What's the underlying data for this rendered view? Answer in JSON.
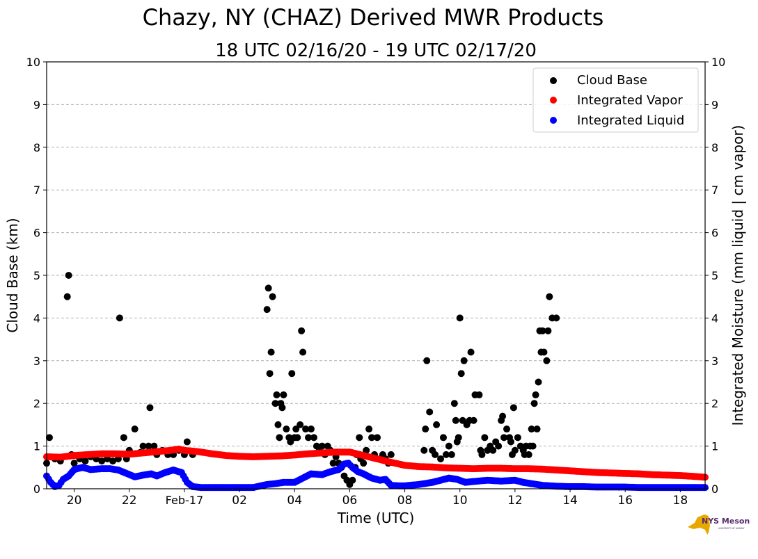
{
  "chart_data": {
    "type": "scatter",
    "title": "Chazy, NY (CHAZ) Derived MWR Products",
    "subtitle": "18 UTC 02/16/20 - 19 UTC 02/17/20",
    "xlabel": "Time (UTC)",
    "ylabel": "Cloud Base (km)",
    "ylabel_right": "Integrated Moisture (mm liquid | cm vapor)",
    "xlim": [
      19.0,
      42.9
    ],
    "ylim": [
      0,
      10
    ],
    "grid": "horizontal dashed",
    "legend_position": "top-right",
    "x_unit_note": "hours since 00 UTC 02/16/20",
    "x_ticks": [
      {
        "value": 20,
        "label": "20"
      },
      {
        "value": 22,
        "label": "22"
      },
      {
        "value": 24,
        "label": "Feb-17"
      },
      {
        "value": 26,
        "label": "02"
      },
      {
        "value": 28,
        "label": "04"
      },
      {
        "value": 30,
        "label": "06"
      },
      {
        "value": 32,
        "label": "08"
      },
      {
        "value": 34,
        "label": "10"
      },
      {
        "value": 36,
        "label": "12"
      },
      {
        "value": 38,
        "label": "14"
      },
      {
        "value": 40,
        "label": "16"
      },
      {
        "value": 42,
        "label": "18"
      }
    ],
    "y_ticks": [
      "0",
      "1",
      "2",
      "3",
      "4",
      "5",
      "6",
      "7",
      "8",
      "9",
      "10"
    ],
    "series": [
      {
        "name": "Cloud Base",
        "color": "#000000",
        "points": [
          [
            19.0,
            0.6
          ],
          [
            19.1,
            1.2
          ],
          [
            19.3,
            0.7
          ],
          [
            19.5,
            0.65
          ],
          [
            19.75,
            4.5
          ],
          [
            19.8,
            5.0
          ],
          [
            19.9,
            0.8
          ],
          [
            20.0,
            0.6
          ],
          [
            20.2,
            0.7
          ],
          [
            20.4,
            0.65
          ],
          [
            20.6,
            0.75
          ],
          [
            20.8,
            0.7
          ],
          [
            21.0,
            0.65
          ],
          [
            21.2,
            0.7
          ],
          [
            21.4,
            0.65
          ],
          [
            21.6,
            0.7
          ],
          [
            21.65,
            4.0
          ],
          [
            21.8,
            1.2
          ],
          [
            21.9,
            0.7
          ],
          [
            22.0,
            0.9
          ],
          [
            22.2,
            1.4
          ],
          [
            22.4,
            0.85
          ],
          [
            22.5,
            1.0
          ],
          [
            22.7,
            1.0
          ],
          [
            22.75,
            1.9
          ],
          [
            22.9,
            1.0
          ],
          [
            23.0,
            0.8
          ],
          [
            23.2,
            0.9
          ],
          [
            23.4,
            0.8
          ],
          [
            23.6,
            0.8
          ],
          [
            23.8,
            0.9
          ],
          [
            24.0,
            0.8
          ],
          [
            24.1,
            1.1
          ],
          [
            24.3,
            0.8
          ],
          [
            27.0,
            4.2
          ],
          [
            27.05,
            4.7
          ],
          [
            27.1,
            2.7
          ],
          [
            27.15,
            3.2
          ],
          [
            27.2,
            4.5
          ],
          [
            27.3,
            2.0
          ],
          [
            27.35,
            2.2
          ],
          [
            27.4,
            1.5
          ],
          [
            27.45,
            1.2
          ],
          [
            27.5,
            2.0
          ],
          [
            27.55,
            1.9
          ],
          [
            27.6,
            2.2
          ],
          [
            27.7,
            1.4
          ],
          [
            27.8,
            1.2
          ],
          [
            27.85,
            1.1
          ],
          [
            27.9,
            2.7
          ],
          [
            28.0,
            1.2
          ],
          [
            28.05,
            1.4
          ],
          [
            28.1,
            1.2
          ],
          [
            28.2,
            1.5
          ],
          [
            28.25,
            3.7
          ],
          [
            28.3,
            3.2
          ],
          [
            28.4,
            1.4
          ],
          [
            28.5,
            1.2
          ],
          [
            28.6,
            1.4
          ],
          [
            28.7,
            1.2
          ],
          [
            28.8,
            1.0
          ],
          [
            28.9,
            0.9
          ],
          [
            29.0,
            1.0
          ],
          [
            29.1,
            0.8
          ],
          [
            29.2,
            1.0
          ],
          [
            29.3,
            0.9
          ],
          [
            29.4,
            0.6
          ],
          [
            29.5,
            0.75
          ],
          [
            29.6,
            0.6
          ],
          [
            29.7,
            0.5
          ],
          [
            29.8,
            0.3
          ],
          [
            29.9,
            0.2
          ],
          [
            30.0,
            0.1
          ],
          [
            30.1,
            0.2
          ],
          [
            30.2,
            0.5
          ],
          [
            30.25,
            0.8
          ],
          [
            30.35,
            1.2
          ],
          [
            30.4,
            0.7
          ],
          [
            30.5,
            0.6
          ],
          [
            30.6,
            0.9
          ],
          [
            30.7,
            1.4
          ],
          [
            30.8,
            1.2
          ],
          [
            30.9,
            0.8
          ],
          [
            31.0,
            1.2
          ],
          [
            31.1,
            0.7
          ],
          [
            31.2,
            0.8
          ],
          [
            31.3,
            0.7
          ],
          [
            31.4,
            0.6
          ],
          [
            31.5,
            0.8
          ],
          [
            32.7,
            0.9
          ],
          [
            32.75,
            1.4
          ],
          [
            32.8,
            3.0
          ],
          [
            32.9,
            1.8
          ],
          [
            33.0,
            0.9
          ],
          [
            33.1,
            0.8
          ],
          [
            33.15,
            1.5
          ],
          [
            33.3,
            0.7
          ],
          [
            33.4,
            1.2
          ],
          [
            33.5,
            0.8
          ],
          [
            33.6,
            1.0
          ],
          [
            33.7,
            0.8
          ],
          [
            33.8,
            2.0
          ],
          [
            33.85,
            1.6
          ],
          [
            33.9,
            1.1
          ],
          [
            33.95,
            1.2
          ],
          [
            34.0,
            4.0
          ],
          [
            34.05,
            2.7
          ],
          [
            34.1,
            1.6
          ],
          [
            34.15,
            3.0
          ],
          [
            34.25,
            1.5
          ],
          [
            34.35,
            1.6
          ],
          [
            34.4,
            3.2
          ],
          [
            34.5,
            1.6
          ],
          [
            34.55,
            2.2
          ],
          [
            34.7,
            2.2
          ],
          [
            34.75,
            0.9
          ],
          [
            34.8,
            0.8
          ],
          [
            34.9,
            1.2
          ],
          [
            35.0,
            0.9
          ],
          [
            35.1,
            1.0
          ],
          [
            35.2,
            0.9
          ],
          [
            35.3,
            1.1
          ],
          [
            35.4,
            1.0
          ],
          [
            35.5,
            1.6
          ],
          [
            35.55,
            1.7
          ],
          [
            35.6,
            1.2
          ],
          [
            35.7,
            1.4
          ],
          [
            35.8,
            1.2
          ],
          [
            35.85,
            1.1
          ],
          [
            35.9,
            0.8
          ],
          [
            35.95,
            1.9
          ],
          [
            36.0,
            0.9
          ],
          [
            36.1,
            1.2
          ],
          [
            36.2,
            1.0
          ],
          [
            36.3,
            0.9
          ],
          [
            36.35,
            0.8
          ],
          [
            36.4,
            1.0
          ],
          [
            36.5,
            0.8
          ],
          [
            36.55,
            1.0
          ],
          [
            36.6,
            1.4
          ],
          [
            36.65,
            1.0
          ],
          [
            36.7,
            2.0
          ],
          [
            36.75,
            2.2
          ],
          [
            36.8,
            1.4
          ],
          [
            36.85,
            2.5
          ],
          [
            36.9,
            3.7
          ],
          [
            36.95,
            3.2
          ],
          [
            37.0,
            3.7
          ],
          [
            37.05,
            3.2
          ],
          [
            37.15,
            3.0
          ],
          [
            37.2,
            3.7
          ],
          [
            37.25,
            4.5
          ],
          [
            37.35,
            4.0
          ],
          [
            37.5,
            4.0
          ]
        ]
      },
      {
        "name": "Integrated Vapor",
        "color": "#ff0000",
        "points": [
          [
            19.0,
            0.75
          ],
          [
            19.5,
            0.74
          ],
          [
            20.0,
            0.78
          ],
          [
            20.5,
            0.8
          ],
          [
            21.0,
            0.82
          ],
          [
            21.5,
            0.82
          ],
          [
            22.0,
            0.81
          ],
          [
            22.5,
            0.84
          ],
          [
            23.0,
            0.87
          ],
          [
            23.5,
            0.9
          ],
          [
            23.8,
            0.93
          ],
          [
            24.0,
            0.9
          ],
          [
            24.5,
            0.87
          ],
          [
            25.0,
            0.82
          ],
          [
            25.5,
            0.78
          ],
          [
            26.0,
            0.76
          ],
          [
            26.5,
            0.75
          ],
          [
            27.0,
            0.76
          ],
          [
            27.5,
            0.77
          ],
          [
            28.0,
            0.79
          ],
          [
            28.5,
            0.82
          ],
          [
            29.0,
            0.84
          ],
          [
            29.5,
            0.86
          ],
          [
            30.0,
            0.86
          ],
          [
            30.5,
            0.78
          ],
          [
            31.0,
            0.7
          ],
          [
            31.5,
            0.62
          ],
          [
            32.0,
            0.55
          ],
          [
            32.5,
            0.52
          ],
          [
            33.0,
            0.51
          ],
          [
            33.5,
            0.49
          ],
          [
            34.0,
            0.48
          ],
          [
            34.5,
            0.47
          ],
          [
            35.0,
            0.48
          ],
          [
            35.5,
            0.48
          ],
          [
            36.0,
            0.47
          ],
          [
            36.5,
            0.47
          ],
          [
            37.0,
            0.46
          ],
          [
            37.5,
            0.44
          ],
          [
            38.0,
            0.42
          ],
          [
            38.5,
            0.4
          ],
          [
            39.0,
            0.38
          ],
          [
            39.5,
            0.37
          ],
          [
            40.0,
            0.36
          ],
          [
            40.5,
            0.35
          ],
          [
            41.0,
            0.33
          ],
          [
            41.5,
            0.32
          ],
          [
            42.0,
            0.31
          ],
          [
            42.5,
            0.29
          ],
          [
            42.9,
            0.27
          ]
        ]
      },
      {
        "name": "Integrated Liquid",
        "color": "#0000ff",
        "points": [
          [
            19.0,
            0.3
          ],
          [
            19.15,
            0.15
          ],
          [
            19.3,
            0.05
          ],
          [
            19.45,
            0.08
          ],
          [
            19.6,
            0.22
          ],
          [
            19.8,
            0.3
          ],
          [
            20.0,
            0.45
          ],
          [
            20.3,
            0.5
          ],
          [
            20.6,
            0.45
          ],
          [
            21.0,
            0.47
          ],
          [
            21.3,
            0.47
          ],
          [
            21.6,
            0.44
          ],
          [
            21.9,
            0.36
          ],
          [
            22.2,
            0.28
          ],
          [
            22.5,
            0.32
          ],
          [
            22.8,
            0.35
          ],
          [
            23.0,
            0.3
          ],
          [
            23.3,
            0.38
          ],
          [
            23.6,
            0.44
          ],
          [
            23.9,
            0.38
          ],
          [
            24.1,
            0.15
          ],
          [
            24.3,
            0.05
          ],
          [
            24.6,
            0.03
          ],
          [
            25.0,
            0.03
          ],
          [
            25.5,
            0.03
          ],
          [
            26.0,
            0.03
          ],
          [
            26.5,
            0.03
          ],
          [
            27.0,
            0.1
          ],
          [
            27.3,
            0.12
          ],
          [
            27.6,
            0.15
          ],
          [
            28.0,
            0.15
          ],
          [
            28.3,
            0.25
          ],
          [
            28.6,
            0.35
          ],
          [
            29.0,
            0.33
          ],
          [
            29.3,
            0.4
          ],
          [
            29.6,
            0.45
          ],
          [
            29.8,
            0.58
          ],
          [
            29.95,
            0.6
          ],
          [
            30.1,
            0.5
          ],
          [
            30.3,
            0.4
          ],
          [
            30.5,
            0.35
          ],
          [
            30.8,
            0.25
          ],
          [
            31.1,
            0.2
          ],
          [
            31.3,
            0.22
          ],
          [
            31.5,
            0.08
          ],
          [
            31.8,
            0.07
          ],
          [
            32.0,
            0.07
          ],
          [
            32.5,
            0.1
          ],
          [
            33.0,
            0.15
          ],
          [
            33.3,
            0.2
          ],
          [
            33.6,
            0.25
          ],
          [
            33.9,
            0.22
          ],
          [
            34.2,
            0.15
          ],
          [
            34.5,
            0.17
          ],
          [
            35.0,
            0.2
          ],
          [
            35.5,
            0.18
          ],
          [
            36.0,
            0.2
          ],
          [
            36.3,
            0.15
          ],
          [
            36.6,
            0.12
          ],
          [
            37.0,
            0.08
          ],
          [
            37.5,
            0.06
          ],
          [
            38.0,
            0.05
          ],
          [
            38.5,
            0.05
          ],
          [
            39.0,
            0.04
          ],
          [
            39.5,
            0.04
          ],
          [
            40.0,
            0.04
          ],
          [
            40.5,
            0.03
          ],
          [
            41.0,
            0.03
          ],
          [
            41.5,
            0.03
          ],
          [
            42.0,
            0.03
          ],
          [
            42.5,
            0.03
          ],
          [
            42.9,
            0.03
          ]
        ]
      }
    ]
  },
  "legend": {
    "items": [
      {
        "label": "Cloud Base",
        "color": "#000000"
      },
      {
        "label": "Integrated Vapor",
        "color": "#ff0000"
      },
      {
        "label": "Integrated Liquid",
        "color": "#0000ff"
      }
    ]
  },
  "logo": {
    "text": "NYS Mesonet",
    "subtext": "UNIVERSITY AT ALBANY",
    "color": "#e8a800",
    "text_color": "#5a2a6e"
  }
}
